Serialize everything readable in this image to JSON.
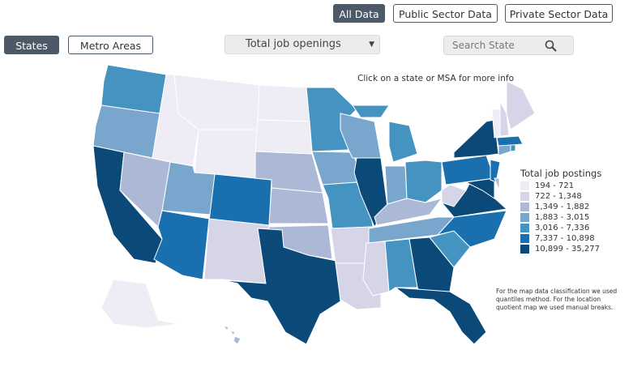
{
  "data_buttons": [
    "All Data",
    "Public Sector Data",
    "Private Sector Data"
  ],
  "geo_buttons": [
    "States",
    "Metro Areas"
  ],
  "dropdown": "Total job openings",
  "search_placeholder": "Search State",
  "hint": "Click on a state or MSA for more info",
  "legend": {
    "title": "Total job postings",
    "classes": [
      {
        "label": "194 - 721",
        "color": "#eeecf4"
      },
      {
        "label": "722 - 1,348",
        "color": "#d6d5e8"
      },
      {
        "label": "1,349 - 1,882",
        "color": "#abb9d6"
      },
      {
        "label": "1,883 - 3,015",
        "color": "#78a6cc"
      },
      {
        "label": "3,016 - 7,336",
        "color": "#4593c0"
      },
      {
        "label": "7,337 - 10,898",
        "color": "#1a6fae"
      },
      {
        "label": "10,899 - 35,277",
        "color": "#0b4a78"
      }
    ]
  },
  "note": "For the map data classification we used quantiles method. For the location quotient map we used manual breaks."
}
